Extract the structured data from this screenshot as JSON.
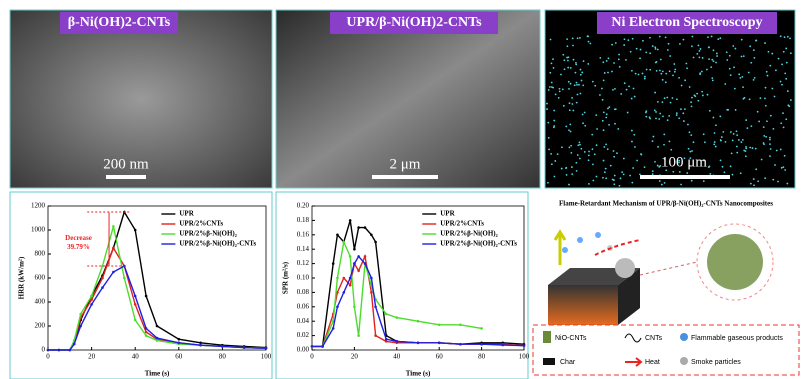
{
  "panels": [
    {
      "label": "β-Ni(OH)2-CNTs",
      "scale_bar": "200 nm"
    },
    {
      "label": "UPR/β-Ni(OH)2-CNTs",
      "scale_bar": "2 μm"
    },
    {
      "label": "Ni Electron Spectroscopy",
      "scale_bar": "100 μm"
    }
  ],
  "chart_data": [
    {
      "type": "line",
      "x_label": "Time (s)",
      "y_label": "HRR (kW/m²)",
      "x": [
        0,
        5,
        10,
        12,
        15,
        20,
        25,
        30,
        35,
        40,
        45,
        50,
        60,
        70,
        80,
        90,
        100
      ],
      "xlim": [
        0,
        100
      ],
      "xticks": [
        0,
        20,
        40,
        60,
        80,
        100
      ],
      "ylim": [
        0,
        1200
      ],
      "yticks": [
        0,
        200,
        400,
        600,
        800,
        1000,
        1200
      ],
      "legend": "upper right",
      "annotation": [
        "Decrease",
        "39.79%"
      ],
      "series": [
        {
          "name": "UPR",
          "color": "#000000",
          "values": [
            0,
            0,
            0,
            50,
            250,
            450,
            620,
            850,
            1150,
            1000,
            450,
            200,
            90,
            60,
            40,
            30,
            20
          ]
        },
        {
          "name": "UPR/2%CNTs",
          "color": "#e3211c",
          "values": [
            0,
            0,
            0,
            60,
            270,
            420,
            600,
            850,
            700,
            380,
            150,
            90,
            60,
            40,
            30,
            20,
            15
          ]
        },
        {
          "name": "UPR/2%β-Ni(OH)₂",
          "color": "#4ddc2e",
          "values": [
            0,
            0,
            0,
            80,
            300,
            450,
            700,
            1030,
            600,
            250,
            120,
            80,
            50,
            40,
            30,
            20,
            15
          ]
        },
        {
          "name": "UPR/2%β-Ni(OH)₂-CNTs",
          "color": "#1f1fe0",
          "values": [
            0,
            0,
            0,
            50,
            200,
            380,
            520,
            650,
            700,
            450,
            180,
            100,
            60,
            40,
            30,
            20,
            15
          ]
        }
      ]
    },
    {
      "type": "line",
      "x_label": "Time (s)",
      "y_label": "SPR (m²/s)",
      "x": [
        0,
        5,
        10,
        12,
        15,
        18,
        20,
        22,
        25,
        28,
        30,
        35,
        40,
        50,
        60,
        70,
        80,
        90,
        100
      ],
      "xlim": [
        0,
        100
      ],
      "xticks": [
        0,
        20,
        40,
        60,
        80,
        100
      ],
      "ylim": [
        0,
        0.2
      ],
      "yticks": [
        {
          "value": 0,
          "label": "0.00"
        },
        0.02,
        0.04,
        0.06,
        0.08,
        {
          "value": 0.1,
          "label": "0.10"
        },
        0.12,
        0.14,
        0.16,
        0.18,
        {
          "value": 0.2,
          "label": "0.20"
        }
      ],
      "legend": "upper right",
      "series": [
        {
          "name": "UPR",
          "color": "#000000",
          "values": [
            0.005,
            0.005,
            0.12,
            0.16,
            0.15,
            0.18,
            0.14,
            0.17,
            0.17,
            0.16,
            0.15,
            0.02,
            0.012,
            0.01,
            0.01,
            0.008,
            0.01,
            0.01,
            0.008
          ]
        },
        {
          "name": "UPR/2%CNTs",
          "color": "#e3211c",
          "values": [
            0.005,
            0.005,
            0.05,
            0.08,
            0.1,
            0.09,
            0.12,
            0.11,
            0.13,
            0.08,
            0.02,
            0.012,
            0.01,
            0.01,
            0.01,
            0.008,
            0.008,
            0.008,
            0.006
          ]
        },
        {
          "name": "UPR/2%β-Ni(OH)₂",
          "color": "#4ddc2e",
          "values": [
            0.005,
            0.005,
            0.04,
            0.1,
            0.15,
            0.13,
            0.06,
            0.02,
            0.12,
            0.09,
            0.07,
            0.05,
            0.045,
            0.04,
            0.035,
            0.035,
            0.03,
            null,
            null
          ]
        },
        {
          "name": "UPR/2%β-Ni(OH)₂-CNTs",
          "color": "#1f1fe0",
          "values": [
            0.005,
            0.005,
            0.03,
            0.06,
            0.08,
            0.1,
            0.12,
            0.13,
            0.12,
            0.1,
            0.06,
            0.015,
            0.012,
            0.01,
            0.01,
            0.008,
            0.008,
            0.007,
            0.006
          ]
        }
      ]
    }
  ],
  "diagram": {
    "title": "Flame-Retardant Mechanism of UPR/β-Ni(OH)₂-CNTs Nanocomposites",
    "legend": [
      "NiO-CNTs",
      "CNTs",
      "Flammable gaseous products",
      "Char",
      "Heat",
      "Smoke particles"
    ]
  }
}
